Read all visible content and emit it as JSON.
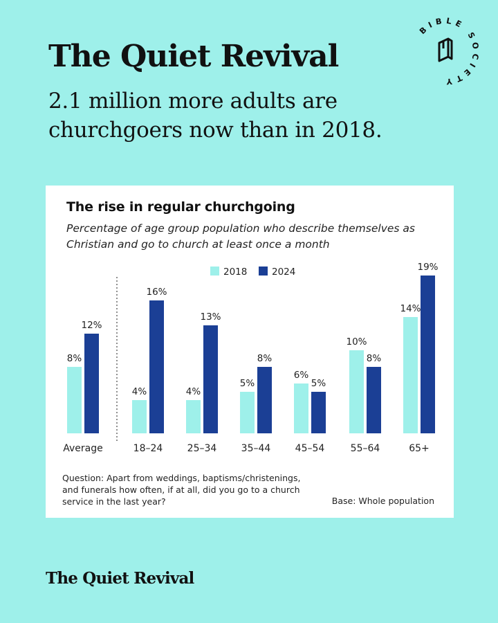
{
  "header": {
    "title": "The Quiet Revival",
    "subtitle": "2.1 million more adults are churchgoers now than in 2018."
  },
  "logo": {
    "text": "BIBLE SOCIETY",
    "icon": "bible-society-book-icon"
  },
  "card": {
    "title": "The rise in regular churchgoing",
    "subtitle": "Percentage of age group population who describe themselves as Christian and go to church at least once a month",
    "question": "Question: Apart from weddings, baptisms/christenings, and funerals how often, if at all, did you go to a church service in the last year?",
    "base": "Base: Whole population"
  },
  "footer": {
    "text": "The Quiet Revival"
  },
  "colors": {
    "background": "#9ef0ea",
    "series_2018": "#9ef0ea",
    "series_2024": "#1b3f95"
  },
  "chart_data": {
    "type": "bar",
    "title": "The rise in regular churchgoing",
    "subtitle": "Percentage of age group population who describe themselves as Christian and go to church at least once a month",
    "categories": [
      "Average",
      "18–24",
      "25–34",
      "35–44",
      "45–54",
      "55–64",
      "65+"
    ],
    "series": [
      {
        "name": "2018",
        "color": "#9ef0ea",
        "values": [
          8,
          4,
          4,
          5,
          6,
          10,
          14
        ],
        "labels": [
          "8%",
          "4%",
          "4%",
          "5%",
          "6%",
          "10%",
          "14%"
        ]
      },
      {
        "name": "2024",
        "color": "#1b3f95",
        "values": [
          12,
          16,
          13,
          8,
          5,
          8,
          19
        ],
        "labels": [
          "12%",
          "16%",
          "13%",
          "8%",
          "5%",
          "8%",
          "19%"
        ]
      }
    ],
    "ylim": [
      0,
      19
    ],
    "grid": false,
    "legend": "top-center",
    "separator_after_category": "Average"
  }
}
